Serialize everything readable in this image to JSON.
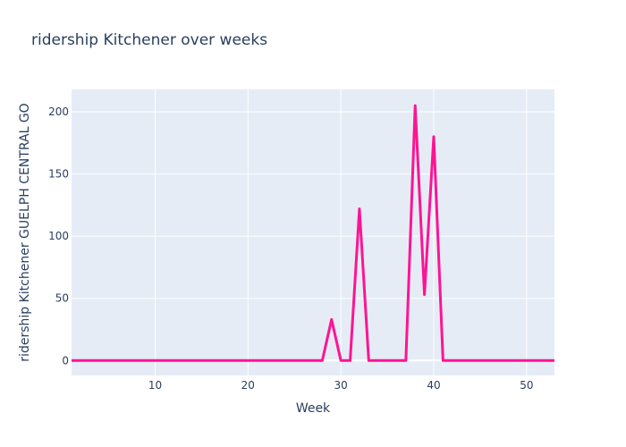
{
  "chart_data": {
    "type": "line",
    "title": "ridership Kitchener over weeks",
    "xlabel": "Week",
    "ylabel": "ridership Kitchener GUELPH CENTRAL GO",
    "xlim": [
      1,
      53
    ],
    "ylim": [
      -12,
      218
    ],
    "x_ticks": [
      10,
      20,
      30,
      40,
      50
    ],
    "y_ticks": [
      0,
      50,
      100,
      150,
      200
    ],
    "grid": true,
    "legend": "none",
    "colors": {
      "background": "#E5ECF6",
      "grid": "#ffffff",
      "line": "#FF1493",
      "text": "#2a3f5f"
    },
    "series": [
      {
        "x": [
          1,
          2,
          3,
          4,
          5,
          6,
          7,
          8,
          9,
          10,
          11,
          12,
          13,
          14,
          15,
          16,
          17,
          18,
          19,
          20,
          21,
          22,
          23,
          24,
          25,
          26,
          27,
          28,
          29,
          30,
          31,
          32,
          33,
          34,
          35,
          36,
          37,
          38,
          39,
          40,
          41,
          42,
          43,
          44,
          45,
          46,
          47,
          48,
          49,
          50,
          51,
          52,
          53
        ],
        "values": [
          0,
          0,
          0,
          0,
          0,
          0,
          0,
          0,
          0,
          0,
          0,
          0,
          0,
          0,
          0,
          0,
          0,
          0,
          0,
          0,
          0,
          0,
          0,
          0,
          0,
          0,
          0,
          0,
          33,
          0,
          0,
          122,
          0,
          0,
          0,
          0,
          0,
          205,
          53,
          180,
          0,
          0,
          0,
          0,
          0,
          0,
          0,
          0,
          0,
          0,
          0,
          0,
          0
        ]
      }
    ]
  }
}
